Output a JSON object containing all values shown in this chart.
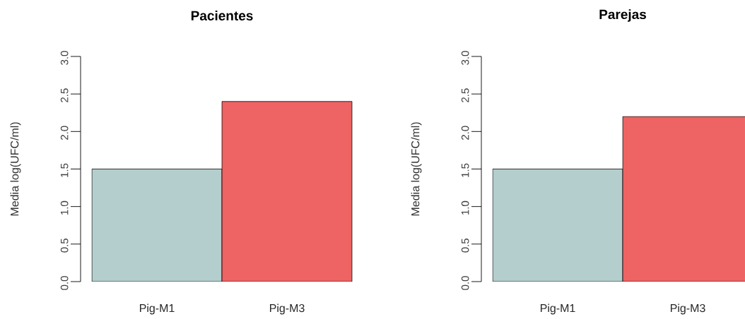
{
  "chart_data": [
    {
      "type": "bar",
      "title": "Pacientes",
      "ylabel": "Media log(UFC/ml)",
      "categories": [
        "Pig-M1",
        "Pig-M3"
      ],
      "values": [
        1.5,
        2.4
      ],
      "colors": [
        "#b4cdcd",
        "#ee6363"
      ],
      "ylim": [
        0,
        3
      ],
      "yticks": [
        {
          "value": 0,
          "label": "0.0"
        },
        {
          "value": 0.5,
          "label": "0.5"
        },
        {
          "value": 1,
          "label": "1.0"
        },
        {
          "value": 1.5,
          "label": "1.5"
        },
        {
          "value": 2,
          "label": "2.0"
        },
        {
          "value": 2.5,
          "label": "2.5"
        },
        {
          "value": 3,
          "label": "3.0"
        }
      ]
    },
    {
      "type": "bar",
      "title": "Parejas",
      "ylabel": "Media log(UFC/ml)",
      "categories": [
        "Pig-M1",
        "Pig-M3"
      ],
      "values": [
        1.5,
        2.2
      ],
      "colors": [
        "#b4cdcd",
        "#ee6363"
      ],
      "ylim": [
        0,
        3
      ],
      "yticks": [
        {
          "value": 0,
          "label": "0.0"
        },
        {
          "value": 0.5,
          "label": "0.5"
        },
        {
          "value": 1,
          "label": "1.0"
        },
        {
          "value": 1.5,
          "label": "1.5"
        },
        {
          "value": 2,
          "label": "2.0"
        },
        {
          "value": 2.5,
          "label": "2.5"
        },
        {
          "value": 3,
          "label": "3.0"
        }
      ]
    }
  ]
}
